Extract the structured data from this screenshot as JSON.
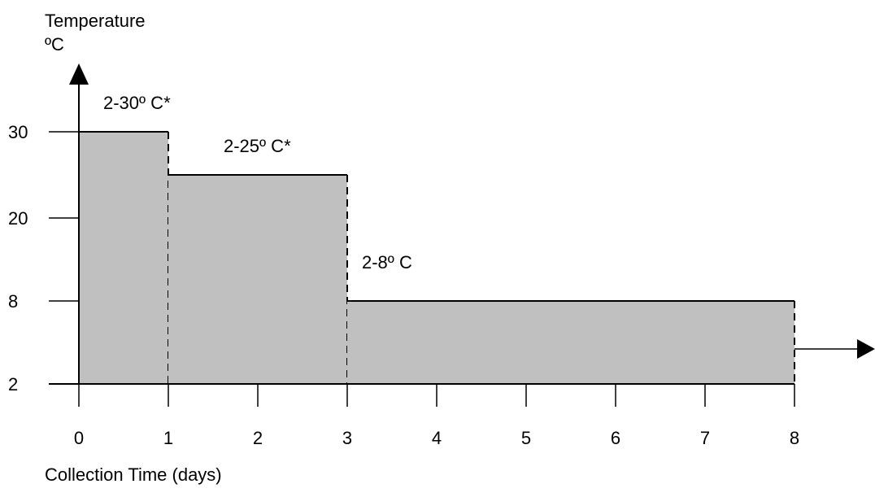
{
  "chart_data": {
    "type": "area",
    "ylabel_line1": "Temperature",
    "ylabel_line2": "ºC",
    "xlabel": "Collection Time (days)",
    "x_ticks": [
      "0",
      "1",
      "2",
      "3",
      "4",
      "5",
      "6",
      "7",
      "8"
    ],
    "y_ticks": [
      {
        "value": 2,
        "label": "2"
      },
      {
        "value": 8,
        "label": "8"
      },
      {
        "value": 20,
        "label": "20"
      },
      {
        "value": 30,
        "label": "30"
      }
    ],
    "segments": [
      {
        "x_start": 0,
        "x_end": 1,
        "y_low": 2,
        "y_high": 30,
        "label": "2-30º C*"
      },
      {
        "x_start": 1,
        "x_end": 3,
        "y_low": 2,
        "y_high": 25,
        "label": "2-25º C*"
      },
      {
        "x_start": 3,
        "x_end": 8,
        "y_low": 2,
        "y_high": 8,
        "label": "2-8º C"
      }
    ],
    "xlim": [
      0,
      8
    ],
    "ylim": [
      2,
      30
    ],
    "fill_color": "#c0c0c0",
    "line_color": "#000000",
    "grid": false,
    "legend": "none"
  }
}
